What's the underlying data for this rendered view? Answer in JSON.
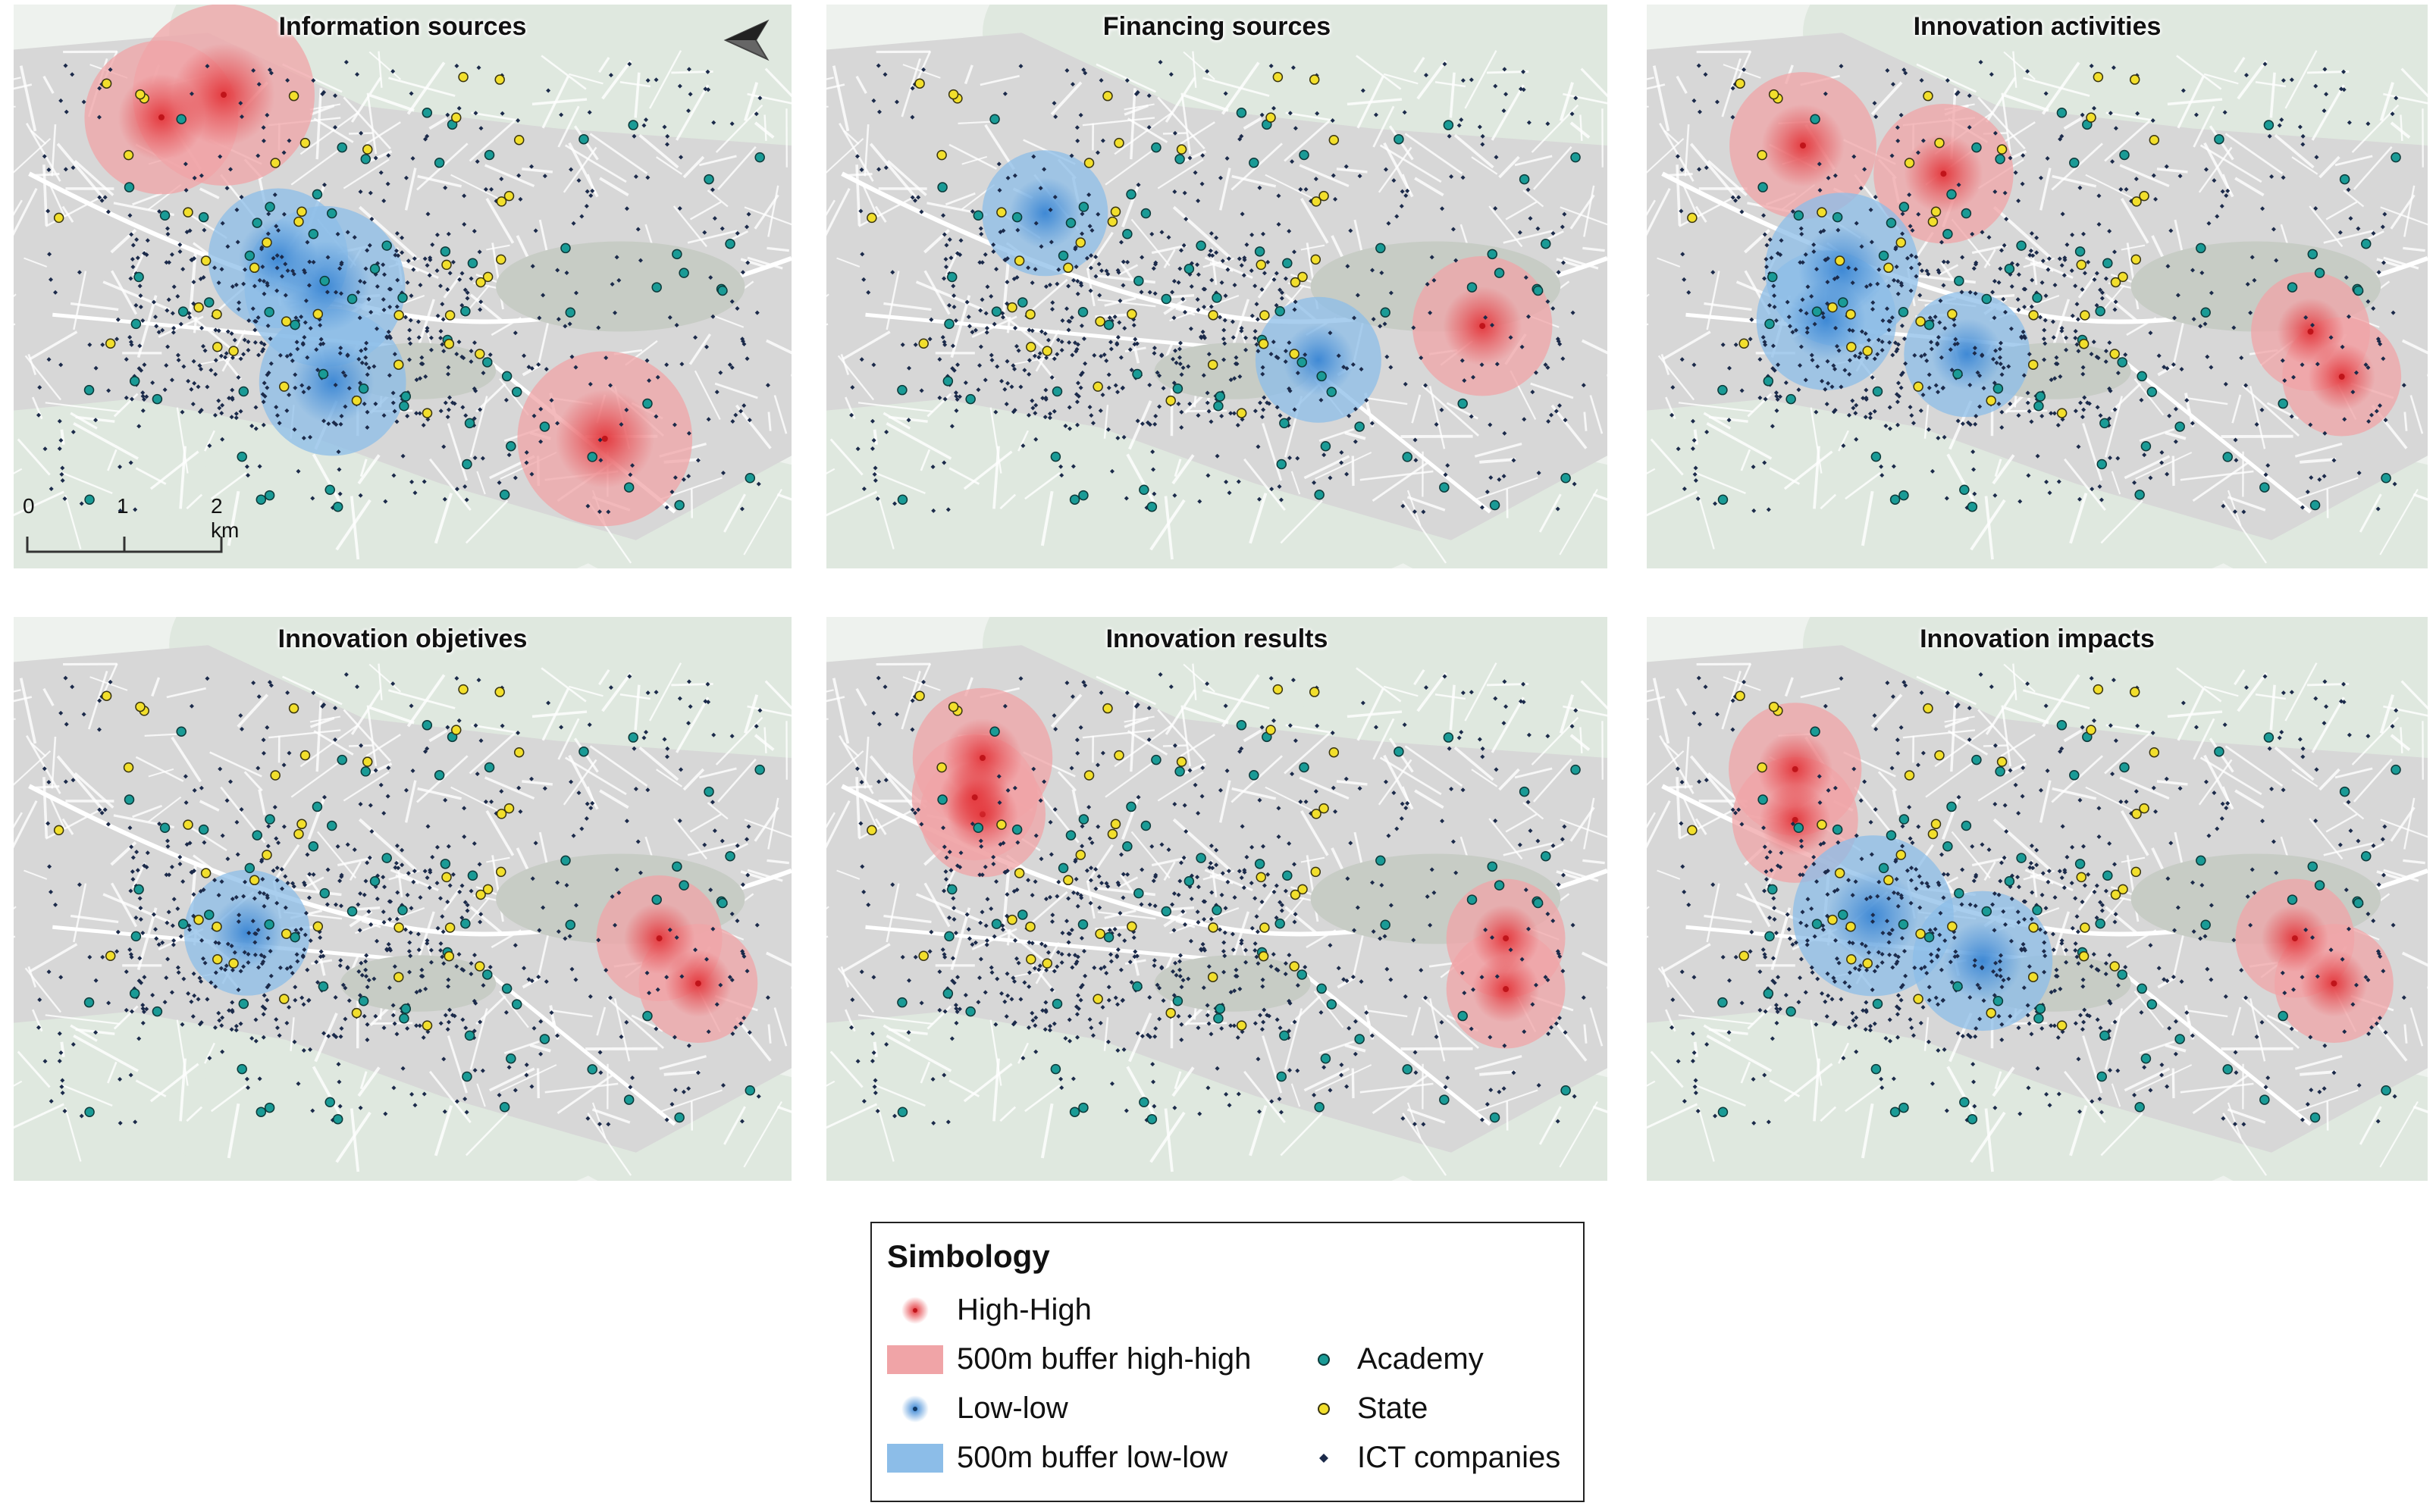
{
  "panels": [
    {
      "title": "Information sources",
      "hh": [
        [
          0.19,
          0.2,
          0.22
        ],
        [
          0.27,
          0.16,
          0.26
        ],
        [
          0.76,
          0.77,
          0.25
        ]
      ],
      "ll": [
        [
          0.34,
          0.45,
          0.2
        ],
        [
          0.4,
          0.5,
          0.23
        ],
        [
          0.41,
          0.67,
          0.21
        ]
      ]
    },
    {
      "title": "Financing sources",
      "hh": [
        [
          0.84,
          0.57,
          0.2
        ]
      ],
      "ll": [
        [
          0.28,
          0.37,
          0.18
        ],
        [
          0.63,
          0.63,
          0.18
        ]
      ]
    },
    {
      "title": "Innovation activities",
      "hh": [
        [
          0.2,
          0.25,
          0.21
        ],
        [
          0.38,
          0.3,
          0.2
        ],
        [
          0.85,
          0.58,
          0.17
        ],
        [
          0.89,
          0.66,
          0.17
        ]
      ],
      "ll": [
        [
          0.25,
          0.47,
          0.22
        ],
        [
          0.23,
          0.56,
          0.2
        ],
        [
          0.41,
          0.62,
          0.18
        ]
      ]
    },
    {
      "title": "Innovation objetives",
      "hh": [
        [
          0.83,
          0.57,
          0.18
        ],
        [
          0.88,
          0.65,
          0.17
        ]
      ],
      "ll": [
        [
          0.3,
          0.56,
          0.18
        ]
      ]
    },
    {
      "title": "Innovation results",
      "hh": [
        [
          0.2,
          0.25,
          0.2
        ],
        [
          0.2,
          0.35,
          0.18
        ],
        [
          0.19,
          0.32,
          0.18
        ],
        [
          0.87,
          0.57,
          0.17
        ],
        [
          0.87,
          0.66,
          0.17
        ]
      ],
      "ll": []
    },
    {
      "title": "Innovation impacts",
      "hh": [
        [
          0.19,
          0.27,
          0.19
        ],
        [
          0.19,
          0.36,
          0.18
        ],
        [
          0.83,
          0.57,
          0.17
        ],
        [
          0.88,
          0.65,
          0.17
        ]
      ],
      "ll": [
        [
          0.29,
          0.53,
          0.23
        ],
        [
          0.43,
          0.61,
          0.2
        ]
      ]
    }
  ],
  "scale": {
    "ticks": [
      "0",
      "1",
      "2 km"
    ]
  },
  "north_icon": "north-arrow-icon",
  "colors": {
    "highHigh": "#e4363b",
    "buffer_hh": "#f0a4a7",
    "lowLow": "#3a86d4",
    "buffer_ll": "#8cbde8",
    "academy": "#1a9b96",
    "state": "#f2df2c",
    "ict": "#1b2a4a"
  },
  "legend": {
    "title": "Simbology",
    "items": [
      {
        "label": "High-High",
        "symbol": "high-high-hotspot"
      },
      {
        "label": "500m buffer high-high",
        "symbol": "buffer-high-high"
      },
      {
        "label": "Low-low",
        "symbol": "low-low-hotspot"
      },
      {
        "label": "500m buffer low-low",
        "symbol": "buffer-low-low"
      },
      {
        "label": "Academy",
        "symbol": "academy-point"
      },
      {
        "label": "State",
        "symbol": "state-point"
      },
      {
        "label": "ICT companies",
        "symbol": "ict-company-point"
      }
    ]
  }
}
